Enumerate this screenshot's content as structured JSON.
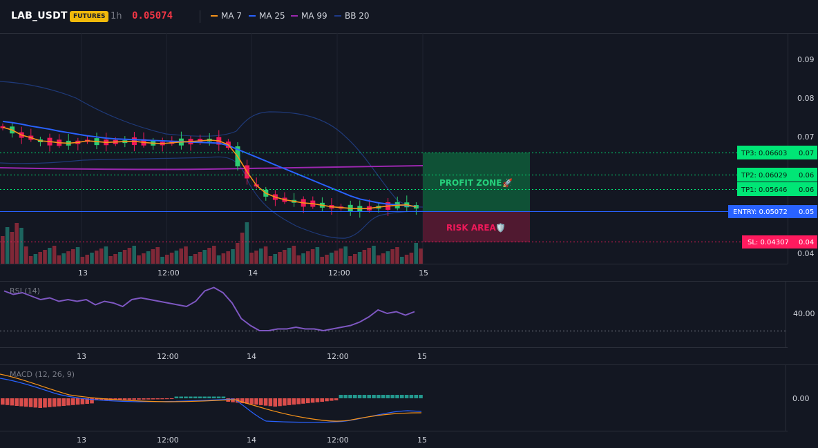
{
  "header": {
    "symbol": "LAB_USDT",
    "badge": "FUTURES",
    "timeframe": "1h",
    "price": "0.05074",
    "legend": [
      {
        "label": "MA 7",
        "color": "#f7931a"
      },
      {
        "label": "MA 25",
        "color": "#2962ff"
      },
      {
        "label": "MA 99",
        "color": "#9c27b0"
      },
      {
        "label": "BB 20",
        "color": "#1e3a8a"
      }
    ]
  },
  "price_axis": [
    "0.09",
    "0.08",
    "0.07",
    "0.06",
    "0.05",
    "0.04"
  ],
  "time_axis": [
    "13",
    "12:00",
    "14",
    "12:00",
    "15"
  ],
  "levels": {
    "tp3": "TP3: 0.06603",
    "tp3_axis": "0.07",
    "tp2": "TP2: 0.06029",
    "tp2_axis": "0.06",
    "tp1": "TP1: 0.05646",
    "tp1_axis": "0.06",
    "entry": "ENTRY: 0.05072",
    "entry_axis": "0.05",
    "sl": "SL: 0.04307",
    "sl_axis": "0.04"
  },
  "zones": {
    "profit": "PROFIT ZONE",
    "profit_icon": "rocket-icon",
    "risk": "RISK AREA",
    "risk_icon": "shield-icon"
  },
  "rsi": {
    "label": "RSI (14)",
    "axis": "40.00"
  },
  "macd": {
    "label": "MACD (12, 26, 9)",
    "axis": "0.00"
  },
  "colors": {
    "up": "#26a69a",
    "down": "#ef5350",
    "candle_up": "#2ecc71",
    "candle_down": "#f0195a",
    "profit_zone": "#0f5c3a",
    "risk_zone": "#5c1a33",
    "entry": "#2962ff",
    "tp": "#00e676",
    "sl": "#ff1a5e"
  },
  "chart_data": {
    "type": "candlestick",
    "ma7": [
      0.0725,
      0.0718,
      0.0705,
      0.0698,
      0.069,
      0.0688,
      0.0685,
      0.0684,
      0.0686,
      0.069,
      0.0688,
      0.0686,
      0.0687,
      0.0688,
      0.0689,
      0.0686,
      0.0684,
      0.0683,
      0.0685,
      0.0687,
      0.0688,
      0.069,
      0.0692,
      0.069,
      0.068,
      0.065,
      0.061,
      0.0575,
      0.0555,
      0.0545,
      0.0538,
      0.0534,
      0.053,
      0.0528,
      0.0524,
      0.052,
      0.0518,
      0.0516,
      0.0515,
      0.0516,
      0.0519,
      0.0522,
      0.0524,
      0.0525,
      0.052
    ],
    "ma25": [
      0.074,
      0.0737,
      0.0733,
      0.0728,
      0.0724,
      0.072,
      0.0715,
      0.0711,
      0.0707,
      0.0703,
      0.07,
      0.0697,
      0.0695,
      0.0694,
      0.0693,
      0.0692,
      0.0691,
      0.069,
      0.0689,
      0.0688,
      0.0687,
      0.0686,
      0.0685,
      0.0684,
      0.0678,
      0.0668,
      0.0658,
      0.0648,
      0.0638,
      0.0628,
      0.0618,
      0.0608,
      0.0598,
      0.0588,
      0.0578,
      0.0568,
      0.0558,
      0.0548,
      0.054,
      0.0535,
      0.053,
      0.0527,
      0.0525,
      0.0523,
      0.0521
    ],
    "ma99": 0.0643,
    "rsi": [
      53,
      51,
      52,
      50,
      48,
      49,
      47,
      48,
      47,
      48,
      45,
      47,
      46,
      44,
      48,
      49,
      48,
      47,
      46,
      45,
      44,
      47,
      53,
      55,
      52,
      46,
      37,
      33,
      30,
      30,
      31,
      31,
      32,
      31,
      31,
      30,
      31,
      32,
      33,
      35,
      38,
      42,
      40,
      41,
      39,
      41
    ]
  }
}
